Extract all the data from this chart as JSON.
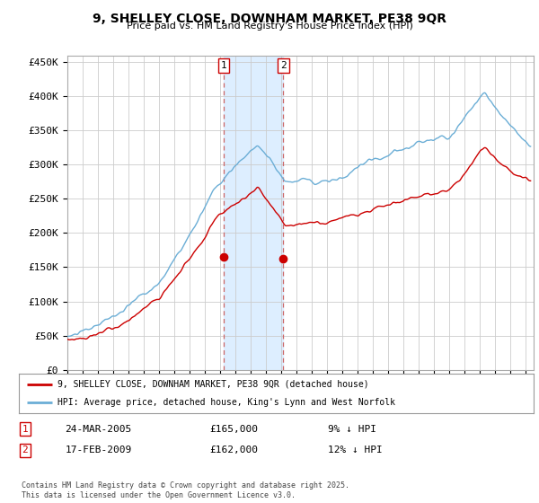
{
  "title": "9, SHELLEY CLOSE, DOWNHAM MARKET, PE38 9QR",
  "subtitle": "Price paid vs. HM Land Registry's House Price Index (HPI)",
  "ylabel_ticks": [
    "£0",
    "£50K",
    "£100K",
    "£150K",
    "£200K",
    "£250K",
    "£300K",
    "£350K",
    "£400K",
    "£450K"
  ],
  "ytick_values": [
    0,
    50000,
    100000,
    150000,
    200000,
    250000,
    300000,
    350000,
    400000,
    450000
  ],
  "ylim": [
    0,
    460000
  ],
  "xlim_start": 1995.0,
  "xlim_end": 2025.5,
  "sale1": {
    "date_num": 2005.23,
    "price": 165000,
    "label": "1",
    "date_str": "24-MAR-2005",
    "pct": "9% ↓ HPI"
  },
  "sale2": {
    "date_num": 2009.13,
    "price": 162000,
    "label": "2",
    "date_str": "17-FEB-2009",
    "pct": "12% ↓ HPI"
  },
  "hpi_color": "#6baed6",
  "price_color": "#cc0000",
  "shade_color": "#ddeeff",
  "grid_color": "#cccccc",
  "legend_text_1": "9, SHELLEY CLOSE, DOWNHAM MARKET, PE38 9QR (detached house)",
  "legend_text_2": "HPI: Average price, detached house, King's Lynn and West Norfolk",
  "footer": "Contains HM Land Registry data © Crown copyright and database right 2025.\nThis data is licensed under the Open Government Licence v3.0.",
  "background": "#ffffff"
}
